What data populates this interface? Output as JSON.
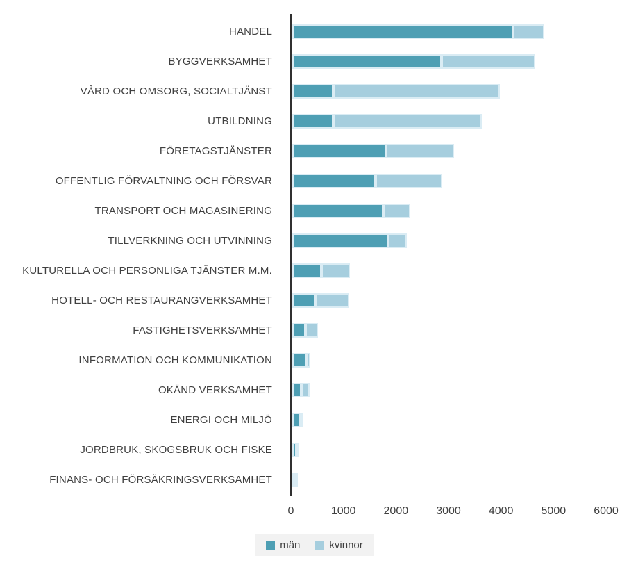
{
  "chart_data": {
    "type": "bar",
    "orientation": "horizontal",
    "stacked": true,
    "title": "",
    "xlabel": "",
    "ylabel": "",
    "xlim": [
      0,
      6000
    ],
    "x_ticks": [
      0,
      1000,
      2000,
      3000,
      4000,
      5000,
      6000
    ],
    "grid": false,
    "legend_position": "bottom",
    "categories": [
      "HANDEL",
      "BYGGVERKSAMHET",
      "VÅRD OCH OMSORG, SOCIALTJÄNST",
      "UTBILDNING",
      "FÖRETAGSTJÄNSTER",
      "OFFENTLIG FÖRVALTNING OCH FÖRSVAR",
      "TRANSPORT OCH MAGASINERING",
      "TILLVERKNING OCH UTVINNING",
      "KULTURELLA OCH PERSONLIGA TJÄNSTER M.M.",
      "HOTELL- OCH RESTAURANGVERKSAMHET",
      "FASTIGHETSVERKSAMHET",
      "INFORMATION OCH KOMMUNIKATION",
      "OKÄND VERKSAMHET",
      "ENERGI OCH MILJÖ",
      "JORDBRUK, SKOGSBRUK OCH FISKE",
      "FINANS- OCH FÖRSÄKRINGSVERKSAMHET"
    ],
    "series": [
      {
        "name": "män",
        "color": "#4E9FB4",
        "values": [
          4200,
          2840,
          780,
          780,
          1780,
          1590,
          1730,
          1830,
          560,
          440,
          250,
          260,
          170,
          150,
          80,
          10
        ]
      },
      {
        "name": "kvinnor",
        "color": "#A6CEDE",
        "values": [
          600,
          1780,
          3170,
          2830,
          1300,
          1270,
          520,
          350,
          540,
          650,
          240,
          80,
          160,
          20,
          55,
          55
        ]
      }
    ]
  },
  "legend": {
    "items": [
      {
        "label": "män",
        "color": "#4E9FB4"
      },
      {
        "label": "kvinnor",
        "color": "#A6CEDE"
      }
    ]
  },
  "colors": {
    "axis_line": "#303030",
    "text": "#404040",
    "segment_border": "#daecf4",
    "legend_background": "#f2f2f2",
    "background": "#ffffff"
  }
}
